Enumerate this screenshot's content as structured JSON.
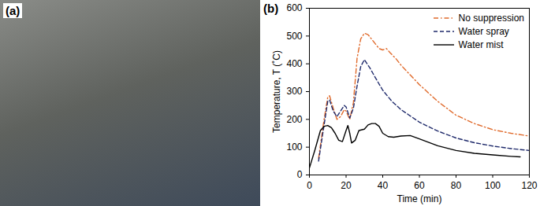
{
  "photo": {
    "label": "(a)"
  },
  "chart_data": {
    "type": "line",
    "title": "(b)",
    "x_label": "Time (min)",
    "y_label": "Temperature, T (˚C)",
    "xlim": [
      0,
      120
    ],
    "xticks": [
      0,
      20,
      40,
      60,
      80,
      100,
      120
    ],
    "ylim": [
      0,
      600
    ],
    "yticks": [
      0,
      100,
      200,
      300,
      400,
      500,
      600
    ],
    "legend": "upper right",
    "series": [
      {
        "name": "No suppression",
        "color": "#e06a2b",
        "line_style": "dashdot",
        "x": [
          5,
          8,
          10,
          11,
          13,
          15,
          17,
          19,
          20,
          22,
          24,
          26,
          28,
          30,
          32,
          35,
          38,
          40,
          42,
          44,
          47,
          50,
          55,
          60,
          70,
          80,
          90,
          100,
          110,
          120
        ],
        "values": [
          60,
          200,
          280,
          285,
          240,
          200,
          210,
          235,
          230,
          200,
          260,
          420,
          490,
          510,
          505,
          480,
          455,
          450,
          455,
          440,
          420,
          395,
          360,
          325,
          265,
          215,
          185,
          163,
          150,
          140
        ]
      },
      {
        "name": "Water spray",
        "color": "#1f2a6b",
        "line_style": "dashed",
        "x": [
          5,
          8,
          10,
          11,
          13,
          15,
          17,
          19,
          20,
          22,
          24,
          26,
          28,
          30,
          33,
          36,
          40,
          45,
          50,
          60,
          70,
          80,
          90,
          100,
          110,
          120
        ],
        "values": [
          50,
          180,
          265,
          270,
          230,
          210,
          230,
          250,
          245,
          205,
          240,
          320,
          390,
          415,
          385,
          350,
          305,
          265,
          235,
          190,
          158,
          133,
          116,
          104,
          95,
          88
        ]
      },
      {
        "name": "Water mist",
        "color": "#000000",
        "line_style": "solid",
        "x": [
          0,
          3,
          6,
          8,
          10,
          12,
          14,
          16,
          18,
          20,
          21,
          22,
          23,
          25,
          27,
          30,
          32,
          34,
          36,
          38,
          40,
          43,
          46,
          50,
          55,
          60,
          70,
          80,
          90,
          100,
          110,
          115
        ],
        "values": [
          25,
          90,
          160,
          175,
          178,
          170,
          150,
          125,
          120,
          160,
          178,
          150,
          115,
          125,
          160,
          165,
          180,
          185,
          185,
          175,
          150,
          138,
          136,
          140,
          142,
          130,
          105,
          88,
          78,
          72,
          67,
          65
        ]
      }
    ]
  }
}
